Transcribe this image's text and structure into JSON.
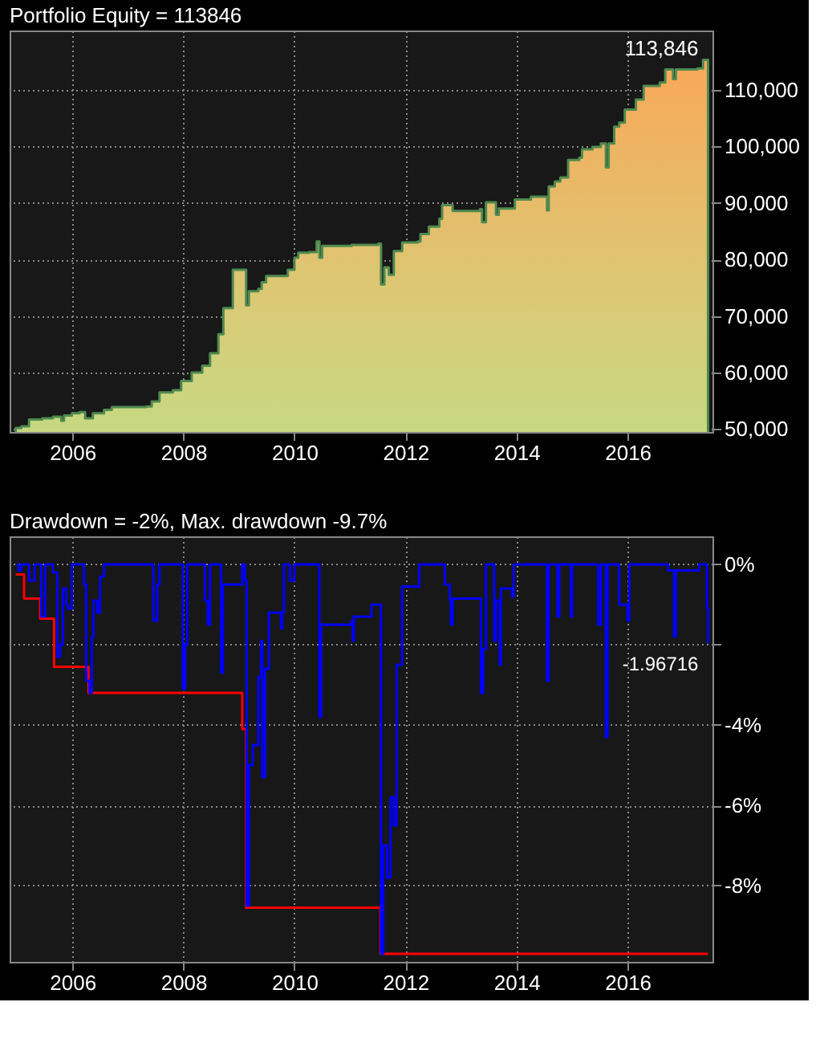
{
  "chart_data": [
    {
      "type": "area",
      "title": "Portfolio Equity = 113846",
      "grid": true,
      "xlim": [
        2004.87,
        2017.53
      ],
      "xticks": [
        2006,
        2008,
        2010,
        2012,
        2014,
        2016
      ],
      "ylim": [
        49500,
        120500
      ],
      "yticks": [
        {
          "value": 50000,
          "label": "50,000"
        },
        {
          "value": 60000,
          "label": "60,000"
        },
        {
          "value": 70000,
          "label": "70,000"
        },
        {
          "value": 80000,
          "label": "80,000"
        },
        {
          "value": 90000,
          "label": "90,000"
        },
        {
          "value": 100000,
          "label": "100,000"
        },
        {
          "value": 110000,
          "label": "110,000"
        }
      ],
      "annotations": [
        {
          "text": "113,846",
          "x": 2017.45,
          "y": 113846
        }
      ],
      "series": [
        {
          "color": "#4f8a4f",
          "x": [
            2004.98,
            2005.08,
            2005.22,
            2005.46,
            2005.65,
            2005.8,
            2005.85,
            2005.99,
            2006.13,
            2006.23,
            2006.37,
            2006.57,
            2006.71,
            2007.33,
            2007.43,
            2007.57,
            2007.81,
            2007.96,
            2008.15,
            2008.34,
            2008.48,
            2008.63,
            2008.72,
            2008.89,
            2009.06,
            2009.13,
            2009.18,
            2009.35,
            2009.41,
            2009.49,
            2009.78,
            2009.88,
            2010.0,
            2010.07,
            2010.26,
            2010.4,
            2010.45,
            2010.5,
            2011.03,
            2011.51,
            2011.56,
            2011.62,
            2011.7,
            2011.79,
            2011.94,
            2012.22,
            2012.27,
            2012.42,
            2012.61,
            2012.66,
            2012.85,
            2013.34,
            2013.38,
            2013.45,
            2013.63,
            2013.68,
            2013.97,
            2014.26,
            2014.52,
            2014.55,
            2014.58,
            2014.69,
            2014.79,
            2014.93,
            2015.13,
            2015.18,
            2015.37,
            2015.52,
            2015.61,
            2015.66,
            2015.76,
            2015.85,
            2015.95,
            2016.15,
            2016.29,
            2016.58,
            2016.68,
            2016.82,
            2016.87,
            2017.26,
            2017.36,
            2017.45
          ],
          "values": [
            50200,
            50500,
            51700,
            51900,
            52200,
            51500,
            52400,
            52800,
            53000,
            51900,
            52800,
            53400,
            53900,
            54000,
            54900,
            56500,
            56900,
            58500,
            60000,
            61200,
            63400,
            66800,
            71400,
            78200,
            78200,
            71900,
            74400,
            74800,
            76000,
            77100,
            77100,
            78200,
            80300,
            81200,
            81300,
            83200,
            80300,
            82400,
            82600,
            82800,
            75600,
            78600,
            77300,
            81500,
            83000,
            83200,
            84500,
            85800,
            87200,
            89600,
            88600,
            88900,
            86600,
            90100,
            87900,
            89000,
            90600,
            91100,
            91100,
            88700,
            92900,
            93800,
            94500,
            97600,
            98000,
            99500,
            99900,
            100500,
            96300,
            100500,
            103500,
            104200,
            106500,
            108300,
            110700,
            111300,
            113600,
            111900,
            113600,
            113800,
            115300,
            113846
          ]
        }
      ]
    },
    {
      "type": "step",
      "title": "Drawdown = -2%, Max. drawdown -9.7%",
      "grid": true,
      "xlim": [
        2004.87,
        2017.53
      ],
      "xticks": [
        2006,
        2008,
        2010,
        2012,
        2014,
        2016
      ],
      "ylim": [
        -9.9,
        0.7
      ],
      "yticks": [
        {
          "value": 0,
          "label": "0%"
        },
        {
          "value": -2,
          "label": null
        },
        {
          "value": -4,
          "label": "-4%"
        },
        {
          "value": -6,
          "label": "-6%"
        },
        {
          "value": -8,
          "label": "-8%"
        }
      ],
      "annotations": [
        {
          "text": "-1.96716",
          "x": 2017.45,
          "y": -1.96716
        }
      ],
      "series": [
        {
          "color": "#ff0000",
          "x": [
            2004.98,
            2005.13,
            2005.42,
            2005.67,
            2006.29,
            2009.06,
            2009.13,
            2011.55,
            2017.45
          ],
          "values": [
            -0.25,
            -0.85,
            -1.35,
            -2.55,
            -3.2,
            -4.1,
            -8.55,
            -9.7,
            -9.7
          ]
        },
        {
          "color": "#0000ff",
          "x": [
            2005.0,
            2005.03,
            2005.08,
            2005.22,
            2005.32,
            2005.44,
            2005.51,
            2005.65,
            2005.73,
            2005.78,
            2005.83,
            2005.89,
            2005.92,
            2005.99,
            2006.21,
            2006.25,
            2006.31,
            2006.35,
            2006.38,
            2006.45,
            2006.5,
            2006.57,
            2007.43,
            2007.46,
            2007.53,
            2007.57,
            2007.96,
            2007.99,
            2008.03,
            2008.07,
            2008.36,
            2008.39,
            2008.44,
            2008.48,
            2008.65,
            2008.68,
            2008.71,
            2009.06,
            2009.11,
            2009.14,
            2009.18,
            2009.25,
            2009.35,
            2009.4,
            2009.42,
            2009.47,
            2009.54,
            2009.76,
            2009.78,
            2009.81,
            2009.92,
            2010.0,
            2010.43,
            2010.45,
            2010.48,
            2011.03,
            2011.05,
            2011.07,
            2011.36,
            2011.39,
            2011.53,
            2011.56,
            2011.6,
            2011.67,
            2011.73,
            2011.79,
            2011.84,
            2011.94,
            2012.22,
            2012.25,
            2012.66,
            2012.71,
            2012.8,
            2012.82,
            2012.85,
            2013.34,
            2013.36,
            2013.4,
            2013.45,
            2013.58,
            2013.6,
            2013.63,
            2013.7,
            2013.72,
            2013.92,
            2013.95,
            2014.5,
            2014.55,
            2014.58,
            2014.74,
            2014.77,
            2014.98,
            2015.0,
            2015.47,
            2015.52,
            2015.61,
            2015.64,
            2015.85,
            2016.0,
            2016.03,
            2016.73,
            2016.84,
            2016.87,
            2017.26,
            2017.29,
            2017.4,
            2017.43,
            2017.45
          ],
          "values": [
            0,
            -0.15,
            0,
            -0.4,
            0,
            -1.3,
            0,
            -0.2,
            -2.3,
            -2.0,
            -0.6,
            -1.0,
            -1.1,
            0,
            -0.5,
            -2.9,
            -3.2,
            -1.8,
            -0.9,
            -1.2,
            -0.3,
            0,
            0,
            -1.4,
            -0.5,
            0,
            0,
            -3.1,
            -2.0,
            0,
            0,
            -0.9,
            -1.5,
            0,
            0,
            -2.7,
            -0.5,
            0,
            -0.4,
            -8.5,
            -5.0,
            -4.5,
            -2.8,
            -1.9,
            -5.3,
            -2.6,
            -1.2,
            -1.6,
            -1.2,
            0,
            -0.4,
            0,
            0,
            -3.8,
            -1.5,
            -1.4,
            -1.9,
            -1.3,
            -1.3,
            -1.0,
            -1.0,
            -9.7,
            -7.0,
            -7.8,
            -5.8,
            -6.5,
            -2.5,
            -0.55,
            -0.55,
            0,
            0,
            -0.5,
            -0.9,
            -1.5,
            -0.85,
            -0.85,
            -3.2,
            -2.1,
            0,
            0,
            -1.9,
            -0.9,
            -2.5,
            -0.6,
            -0.8,
            0,
            0,
            -2.9,
            0,
            -1.3,
            0,
            -1.3,
            0,
            -1.5,
            0,
            -4.3,
            0,
            -1.0,
            -1.4,
            0,
            -0.15,
            -1.8,
            -0.15,
            -0.15,
            0,
            0,
            -1.1,
            -1.96716
          ]
        }
      ]
    }
  ]
}
